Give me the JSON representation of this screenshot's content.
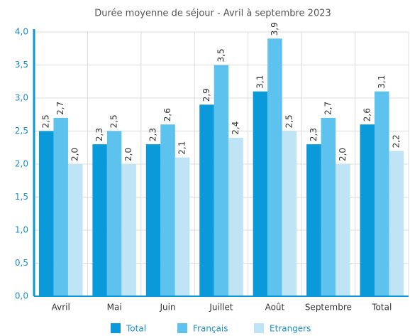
{
  "chart_data": {
    "type": "bar",
    "title": "Durée moyenne de séjour - Avril à septembre 2023",
    "categories": [
      "Avril",
      "Mai",
      "Juin",
      "Juillet",
      "Août",
      "Septembre",
      "Total"
    ],
    "series": [
      {
        "name": "Total",
        "color": "#0b9ad9",
        "values": [
          2.5,
          2.3,
          2.3,
          2.9,
          3.1,
          2.3,
          2.6
        ],
        "value_labels": [
          "2,5",
          "2,3",
          "2,3",
          "2,9",
          "3,1",
          "2,3",
          "2,6"
        ]
      },
      {
        "name": "Français",
        "color": "#5ec2ee",
        "values": [
          2.7,
          2.5,
          2.6,
          3.5,
          3.9,
          2.7,
          3.1
        ],
        "value_labels": [
          "2,7",
          "2,5",
          "2,6",
          "3,5",
          "3,9",
          "2,7",
          "3,1"
        ]
      },
      {
        "name": "Etrangers",
        "color": "#bee4f6",
        "values": [
          2.0,
          2.0,
          2.1,
          2.4,
          2.5,
          2.0,
          2.2
        ],
        "value_labels": [
          "2,0",
          "2,0",
          "2,1",
          "2,4",
          "2,5",
          "2,0",
          "2,2"
        ]
      }
    ],
    "ylim": [
      0,
      4
    ],
    "yticks": [
      {
        "value": 0,
        "label": "0,0"
      },
      {
        "value": 0.5,
        "label": "0,5"
      },
      {
        "value": 1,
        "label": "1,0"
      },
      {
        "value": 1.5,
        "label": "1,5"
      },
      {
        "value": 2,
        "label": "2,0"
      },
      {
        "value": 2.5,
        "label": "2,5"
      },
      {
        "value": 3,
        "label": "3,0"
      },
      {
        "value": 3.5,
        "label": "3,5"
      },
      {
        "value": 4,
        "label": "4,0"
      }
    ],
    "grid": true
  }
}
